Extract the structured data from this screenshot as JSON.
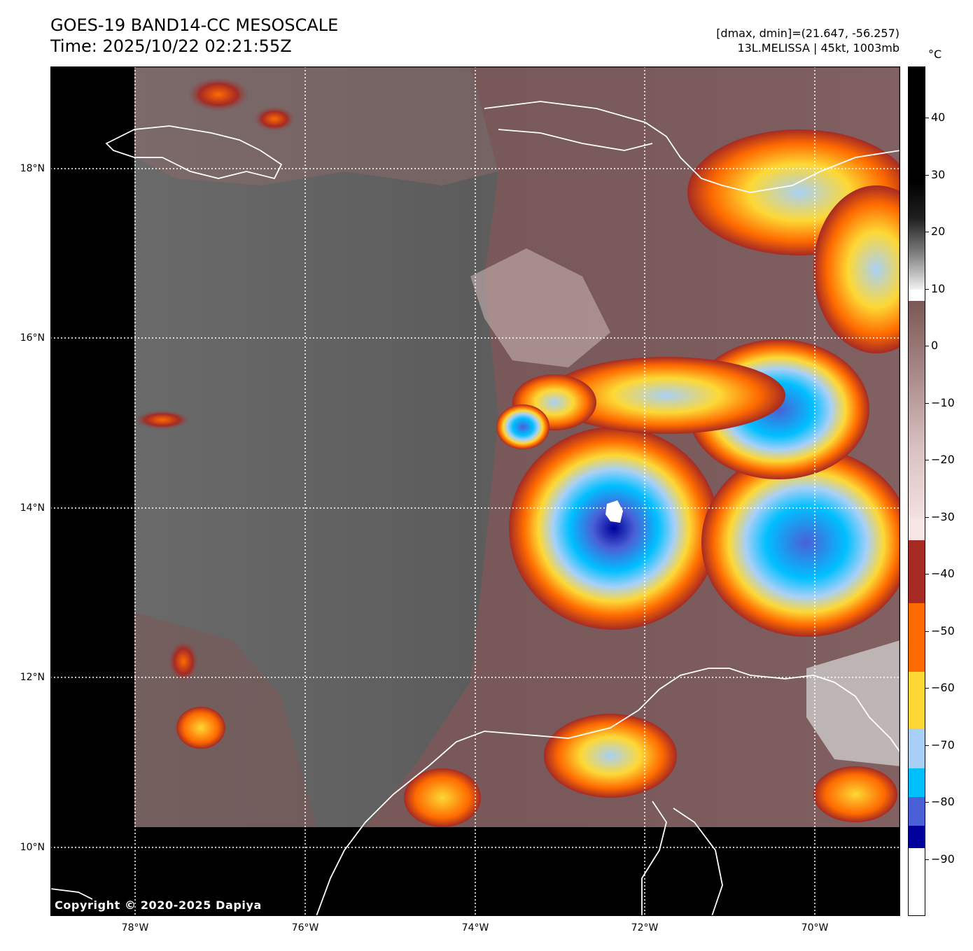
{
  "title": {
    "line1": "GOES-19 BAND14-CC MESOSCALE",
    "line2": "Time: 2025/10/22 02:21:55Z"
  },
  "info": {
    "range_text": "[dmax, dmin]=(21.647, -56.257)",
    "storm_text": "13L.MELISSA | 45kt, 1003mb"
  },
  "map": {
    "lat_labels": [
      "18°N",
      "16°N",
      "14°N",
      "12°N",
      "10°N"
    ],
    "lon_labels": [
      "78°W",
      "76°W",
      "74°W",
      "72°W",
      "70°W"
    ],
    "lat_range": [
      9.2,
      19.2
    ],
    "lon_range": [
      -79.0,
      -69.0
    ]
  },
  "colorbar": {
    "unit": "°C",
    "tick_labels": [
      "40",
      "30",
      "20",
      "10",
      "0",
      "−10",
      "−20",
      "−30",
      "−40",
      "−50",
      "−60",
      "−70",
      "−80",
      "−90"
    ],
    "tick_values": [
      40,
      30,
      20,
      10,
      0,
      -10,
      -20,
      -30,
      -40,
      -50,
      -60,
      -70,
      -80,
      -90
    ],
    "range": [
      49,
      -100
    ],
    "segments": [
      {
        "from": 49,
        "to": 29,
        "color": "#000000"
      },
      {
        "from": 29,
        "to": 10,
        "color": "#8a8a8a"
      },
      {
        "from": 10,
        "to": 8,
        "color": "#ffffff"
      },
      {
        "from": 8,
        "to": -30,
        "color": "#7b5858"
      },
      {
        "from": -30,
        "to": -34,
        "color": "#f7e4e4"
      },
      {
        "from": -34,
        "to": -45,
        "color": "#a52a24"
      },
      {
        "from": -45,
        "to": -57,
        "color": "#ff6a00"
      },
      {
        "from": -57,
        "to": -67,
        "color": "#fdd835"
      },
      {
        "from": -67,
        "to": -74,
        "color": "#a8d0f7"
      },
      {
        "from": -74,
        "to": -79,
        "color": "#00bfff"
      },
      {
        "from": -79,
        "to": -84,
        "color": "#4a60d6"
      },
      {
        "from": -84,
        "to": -88,
        "color": "#00009a"
      },
      {
        "from": -88,
        "to": -100,
        "color": "#ffffff"
      }
    ]
  },
  "copyright": "Copyright © 2020-2025 Dapiya"
}
